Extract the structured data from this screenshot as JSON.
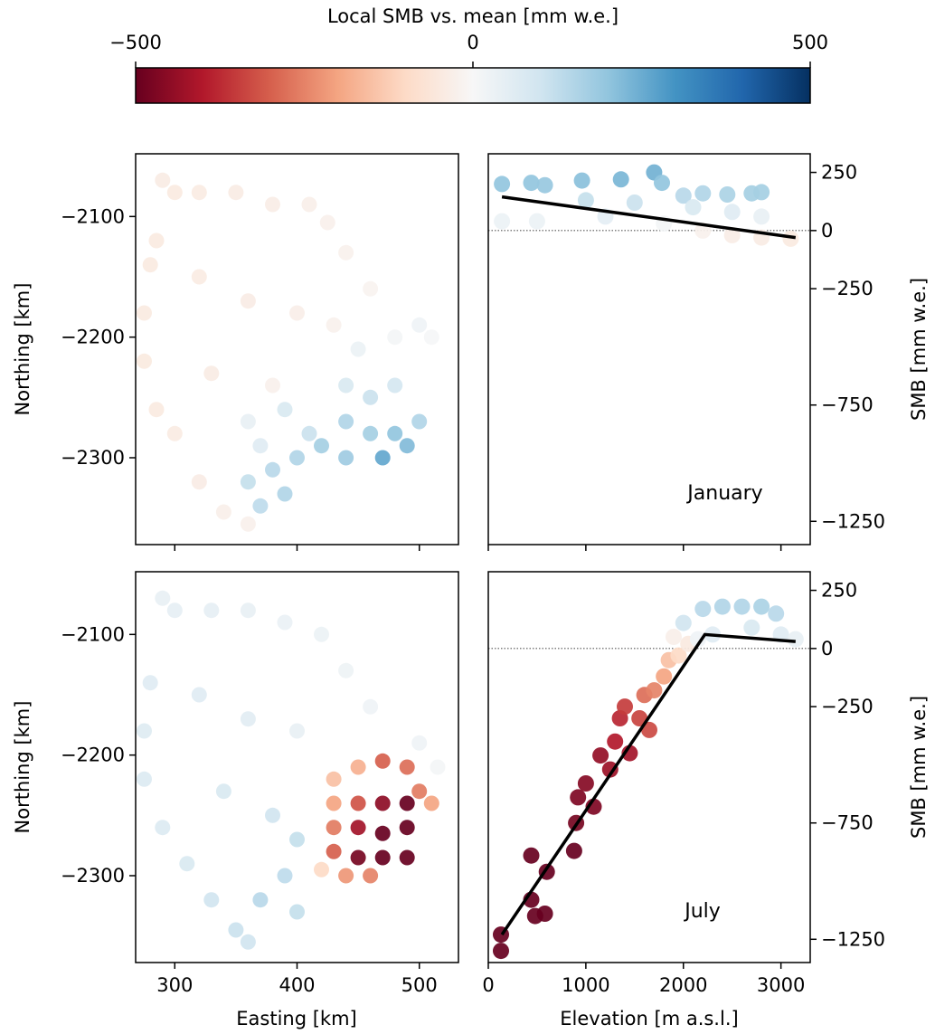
{
  "colorbar": {
    "label": "Local SMB vs. mean [mm w.e.]",
    "min": -500,
    "max": 500,
    "ticks": [
      -500,
      0,
      500
    ],
    "tick_labels": [
      "−500",
      "0",
      "500"
    ],
    "colormap": "RdBu"
  },
  "chart_data": [
    {
      "id": "map-january",
      "type": "scatter",
      "title": "",
      "xlabel": "",
      "ylabel": "Northing [km]",
      "xlim": [
        268,
        532
      ],
      "ylim": [
        -2372,
        -2048
      ],
      "xticks": [
        300,
        400,
        500
      ],
      "yticks": [
        -2100,
        -2200,
        -2300
      ],
      "ytick_labels": [
        "−2100",
        "−2200",
        "−2300"
      ],
      "color_scale": "colorbar",
      "points": [
        {
          "x": 290,
          "y": -2070,
          "v": -40
        },
        {
          "x": 300,
          "y": -2080,
          "v": -45
        },
        {
          "x": 320,
          "y": -2080,
          "v": -42
        },
        {
          "x": 350,
          "y": -2080,
          "v": -40
        },
        {
          "x": 380,
          "y": -2090,
          "v": -35
        },
        {
          "x": 410,
          "y": -2090,
          "v": -30
        },
        {
          "x": 425,
          "y": -2105,
          "v": -25
        },
        {
          "x": 440,
          "y": -2130,
          "v": -20
        },
        {
          "x": 460,
          "y": -2160,
          "v": -15
        },
        {
          "x": 285,
          "y": -2120,
          "v": -45
        },
        {
          "x": 280,
          "y": -2140,
          "v": -45
        },
        {
          "x": 275,
          "y": -2180,
          "v": -45
        },
        {
          "x": 275,
          "y": -2220,
          "v": -48
        },
        {
          "x": 285,
          "y": -2260,
          "v": -45
        },
        {
          "x": 300,
          "y": -2280,
          "v": -42
        },
        {
          "x": 320,
          "y": -2320,
          "v": -38
        },
        {
          "x": 340,
          "y": -2345,
          "v": -30
        },
        {
          "x": 360,
          "y": -2355,
          "v": -25
        },
        {
          "x": 320,
          "y": -2150,
          "v": -42
        },
        {
          "x": 360,
          "y": -2170,
          "v": -38
        },
        {
          "x": 400,
          "y": -2180,
          "v": -32
        },
        {
          "x": 430,
          "y": -2190,
          "v": -20
        },
        {
          "x": 330,
          "y": -2230,
          "v": -40
        },
        {
          "x": 380,
          "y": -2240,
          "v": -25
        },
        {
          "x": 450,
          "y": -2210,
          "v": 30
        },
        {
          "x": 480,
          "y": -2200,
          "v": 10
        },
        {
          "x": 500,
          "y": -2190,
          "v": 20
        },
        {
          "x": 510,
          "y": -2200,
          "v": 5
        },
        {
          "x": 440,
          "y": -2240,
          "v": 80
        },
        {
          "x": 460,
          "y": -2250,
          "v": 110
        },
        {
          "x": 480,
          "y": -2240,
          "v": 90
        },
        {
          "x": 440,
          "y": -2270,
          "v": 150
        },
        {
          "x": 460,
          "y": -2280,
          "v": 170
        },
        {
          "x": 480,
          "y": -2280,
          "v": 200
        },
        {
          "x": 500,
          "y": -2270,
          "v": 150
        },
        {
          "x": 470,
          "y": -2300,
          "v": 260
        },
        {
          "x": 490,
          "y": -2290,
          "v": 220
        },
        {
          "x": 440,
          "y": -2300,
          "v": 180
        },
        {
          "x": 420,
          "y": -2290,
          "v": 170
        },
        {
          "x": 400,
          "y": -2300,
          "v": 150
        },
        {
          "x": 380,
          "y": -2310,
          "v": 140
        },
        {
          "x": 360,
          "y": -2320,
          "v": 120
        },
        {
          "x": 370,
          "y": -2340,
          "v": 130
        },
        {
          "x": 390,
          "y": -2330,
          "v": 150
        },
        {
          "x": 410,
          "y": -2280,
          "v": 110
        },
        {
          "x": 370,
          "y": -2290,
          "v": 60
        },
        {
          "x": 360,
          "y": -2270,
          "v": 40
        },
        {
          "x": 390,
          "y": -2260,
          "v": 80
        }
      ]
    },
    {
      "id": "profile-january",
      "type": "scatter",
      "annotation": "January",
      "xlabel": "",
      "ylabel": "SMB [mm w.e.]",
      "xlim": [
        0,
        3300
      ],
      "ylim": [
        -1350,
        330
      ],
      "xticks": [
        0,
        1000,
        2000,
        3000
      ],
      "yticks": [
        250,
        0,
        -250,
        -750,
        -1250
      ],
      "ytick_labels": [
        "250",
        "0",
        "−250",
        "−750",
        "−1250"
      ],
      "color_scale": "colorbar",
      "zero_line": 0,
      "points": [
        {
          "x": 140,
          "y": 200,
          "v": 200
        },
        {
          "x": 440,
          "y": 205,
          "v": 200
        },
        {
          "x": 580,
          "y": 195,
          "v": 190
        },
        {
          "x": 960,
          "y": 215,
          "v": 210
        },
        {
          "x": 1360,
          "y": 220,
          "v": 230
        },
        {
          "x": 1700,
          "y": 250,
          "v": 240
        },
        {
          "x": 1780,
          "y": 205,
          "v": 200
        },
        {
          "x": 2000,
          "y": 150,
          "v": 140
        },
        {
          "x": 2200,
          "y": 160,
          "v": 150
        },
        {
          "x": 2450,
          "y": 155,
          "v": 160
        },
        {
          "x": 2700,
          "y": 160,
          "v": 170
        },
        {
          "x": 2800,
          "y": 165,
          "v": 170
        },
        {
          "x": 1000,
          "y": 130,
          "v": 120
        },
        {
          "x": 1500,
          "y": 120,
          "v": 110
        },
        {
          "x": 2100,
          "y": 100,
          "v": 80
        },
        {
          "x": 2500,
          "y": 80,
          "v": 60
        },
        {
          "x": 2800,
          "y": 60,
          "v": 40
        },
        {
          "x": 140,
          "y": 40,
          "v": 30
        },
        {
          "x": 500,
          "y": 40,
          "v": 30
        },
        {
          "x": 1200,
          "y": 60,
          "v": 50
        },
        {
          "x": 1800,
          "y": 30,
          "v": 10
        },
        {
          "x": 2200,
          "y": 0,
          "v": -20
        },
        {
          "x": 2500,
          "y": -20,
          "v": -35
        },
        {
          "x": 2800,
          "y": -30,
          "v": -40
        },
        {
          "x": 3100,
          "y": -35,
          "v": -45
        }
      ],
      "fit_line": [
        {
          "x": 140,
          "y": 145
        },
        {
          "x": 3150,
          "y": -30
        }
      ]
    },
    {
      "id": "map-july",
      "type": "scatter",
      "title": "",
      "xlabel": "Easting [km]",
      "ylabel": "Northing [km]",
      "xlim": [
        268,
        532
      ],
      "ylim": [
        -2372,
        -2048
      ],
      "xticks": [
        300,
        400,
        500
      ],
      "yticks": [
        -2100,
        -2200,
        -2300
      ],
      "ytick_labels": [
        "−2100",
        "−2200",
        "−2300"
      ],
      "color_scale": "colorbar",
      "points": [
        {
          "x": 290,
          "y": -2070,
          "v": 40
        },
        {
          "x": 300,
          "y": -2080,
          "v": 45
        },
        {
          "x": 330,
          "y": -2080,
          "v": 45
        },
        {
          "x": 360,
          "y": -2080,
          "v": 40
        },
        {
          "x": 390,
          "y": -2090,
          "v": 35
        },
        {
          "x": 420,
          "y": -2100,
          "v": 30
        },
        {
          "x": 440,
          "y": -2130,
          "v": 25
        },
        {
          "x": 460,
          "y": -2160,
          "v": 20
        },
        {
          "x": 280,
          "y": -2140,
          "v": 60
        },
        {
          "x": 275,
          "y": -2180,
          "v": 65
        },
        {
          "x": 275,
          "y": -2220,
          "v": 70
        },
        {
          "x": 290,
          "y": -2260,
          "v": 70
        },
        {
          "x": 310,
          "y": -2290,
          "v": 80
        },
        {
          "x": 330,
          "y": -2320,
          "v": 100
        },
        {
          "x": 350,
          "y": -2345,
          "v": 110
        },
        {
          "x": 360,
          "y": -2355,
          "v": 100
        },
        {
          "x": 320,
          "y": -2150,
          "v": 60
        },
        {
          "x": 360,
          "y": -2170,
          "v": 55
        },
        {
          "x": 400,
          "y": -2180,
          "v": 40
        },
        {
          "x": 340,
          "y": -2230,
          "v": 80
        },
        {
          "x": 380,
          "y": -2250,
          "v": 100
        },
        {
          "x": 400,
          "y": -2270,
          "v": 120
        },
        {
          "x": 390,
          "y": -2300,
          "v": 130
        },
        {
          "x": 370,
          "y": -2320,
          "v": 140
        },
        {
          "x": 400,
          "y": -2330,
          "v": 120
        },
        {
          "x": 500,
          "y": -2190,
          "v": 20
        },
        {
          "x": 515,
          "y": -2210,
          "v": 10
        },
        {
          "x": 430,
          "y": -2220,
          "v": -150
        },
        {
          "x": 450,
          "y": -2210,
          "v": -180
        },
        {
          "x": 470,
          "y": -2205,
          "v": -300
        },
        {
          "x": 490,
          "y": -2210,
          "v": -280
        },
        {
          "x": 500,
          "y": -2230,
          "v": -260
        },
        {
          "x": 510,
          "y": -2240,
          "v": -200
        },
        {
          "x": 430,
          "y": -2240,
          "v": -200
        },
        {
          "x": 450,
          "y": -2240,
          "v": -320
        },
        {
          "x": 470,
          "y": -2240,
          "v": -450
        },
        {
          "x": 490,
          "y": -2240,
          "v": -500
        },
        {
          "x": 430,
          "y": -2260,
          "v": -260
        },
        {
          "x": 450,
          "y": -2260,
          "v": -420
        },
        {
          "x": 470,
          "y": -2265,
          "v": -500
        },
        {
          "x": 490,
          "y": -2260,
          "v": -500
        },
        {
          "x": 430,
          "y": -2280,
          "v": -300
        },
        {
          "x": 450,
          "y": -2285,
          "v": -480
        },
        {
          "x": 470,
          "y": -2285,
          "v": -500
        },
        {
          "x": 490,
          "y": -2285,
          "v": -500
        },
        {
          "x": 440,
          "y": -2300,
          "v": -220
        },
        {
          "x": 460,
          "y": -2300,
          "v": -250
        },
        {
          "x": 420,
          "y": -2295,
          "v": -100
        }
      ]
    },
    {
      "id": "profile-july",
      "type": "scatter",
      "annotation": "July",
      "xlabel": "Elevation [m a.s.l.]",
      "ylabel": "SMB [mm w.e.]",
      "xlim": [
        0,
        3300
      ],
      "ylim": [
        -1350,
        330
      ],
      "xticks": [
        0,
        1000,
        2000,
        3000
      ],
      "yticks": [
        250,
        0,
        -250,
        -750,
        -1250
      ],
      "ytick_labels": [
        "250",
        "0",
        "−250",
        "−750",
        "−1250"
      ],
      "color_scale": "colorbar",
      "zero_line": 0,
      "points": [
        {
          "x": 130,
          "y": -1230,
          "v": -500
        },
        {
          "x": 130,
          "y": -1300,
          "v": -500
        },
        {
          "x": 140,
          "y": -1360,
          "v": -500
        },
        {
          "x": 130,
          "y": -1400,
          "v": -500
        },
        {
          "x": 440,
          "y": -1080,
          "v": -500
        },
        {
          "x": 480,
          "y": -1150,
          "v": -500
        },
        {
          "x": 580,
          "y": -1140,
          "v": -500
        },
        {
          "x": 600,
          "y": -960,
          "v": -500
        },
        {
          "x": 440,
          "y": -890,
          "v": -500
        },
        {
          "x": 880,
          "y": -870,
          "v": -500
        },
        {
          "x": 900,
          "y": -750,
          "v": -480
        },
        {
          "x": 920,
          "y": -640,
          "v": -470
        },
        {
          "x": 1000,
          "y": -580,
          "v": -460
        },
        {
          "x": 1080,
          "y": -680,
          "v": -470
        },
        {
          "x": 1150,
          "y": -460,
          "v": -440
        },
        {
          "x": 1250,
          "y": -520,
          "v": -430
        },
        {
          "x": 1300,
          "y": -400,
          "v": -400
        },
        {
          "x": 1350,
          "y": -300,
          "v": -380
        },
        {
          "x": 1400,
          "y": -250,
          "v": -350
        },
        {
          "x": 1550,
          "y": -300,
          "v": -340
        },
        {
          "x": 1600,
          "y": -200,
          "v": -280
        },
        {
          "x": 1700,
          "y": -180,
          "v": -250
        },
        {
          "x": 1800,
          "y": -120,
          "v": -200
        },
        {
          "x": 1850,
          "y": -50,
          "v": -150
        },
        {
          "x": 1950,
          "y": -30,
          "v": -100
        },
        {
          "x": 2050,
          "y": 20,
          "v": -50
        },
        {
          "x": 1900,
          "y": 50,
          "v": -30
        },
        {
          "x": 2150,
          "y": 40,
          "v": 20
        },
        {
          "x": 2300,
          "y": 60,
          "v": 60
        },
        {
          "x": 2000,
          "y": 110,
          "v": 100
        },
        {
          "x": 2200,
          "y": 170,
          "v": 140
        },
        {
          "x": 2400,
          "y": 180,
          "v": 150
        },
        {
          "x": 2600,
          "y": 180,
          "v": 150
        },
        {
          "x": 2800,
          "y": 180,
          "v": 160
        },
        {
          "x": 2950,
          "y": 150,
          "v": 140
        },
        {
          "x": 2700,
          "y": 90,
          "v": 80
        },
        {
          "x": 3000,
          "y": 60,
          "v": 60
        },
        {
          "x": 3150,
          "y": 40,
          "v": 40
        },
        {
          "x": 1450,
          "y": -450,
          "v": -420
        },
        {
          "x": 1650,
          "y": -350,
          "v": -330
        }
      ],
      "fit_line": [
        {
          "x": 140,
          "y": -1230
        },
        {
          "x": 2220,
          "y": 60
        },
        {
          "x": 3150,
          "y": 30
        }
      ]
    }
  ]
}
